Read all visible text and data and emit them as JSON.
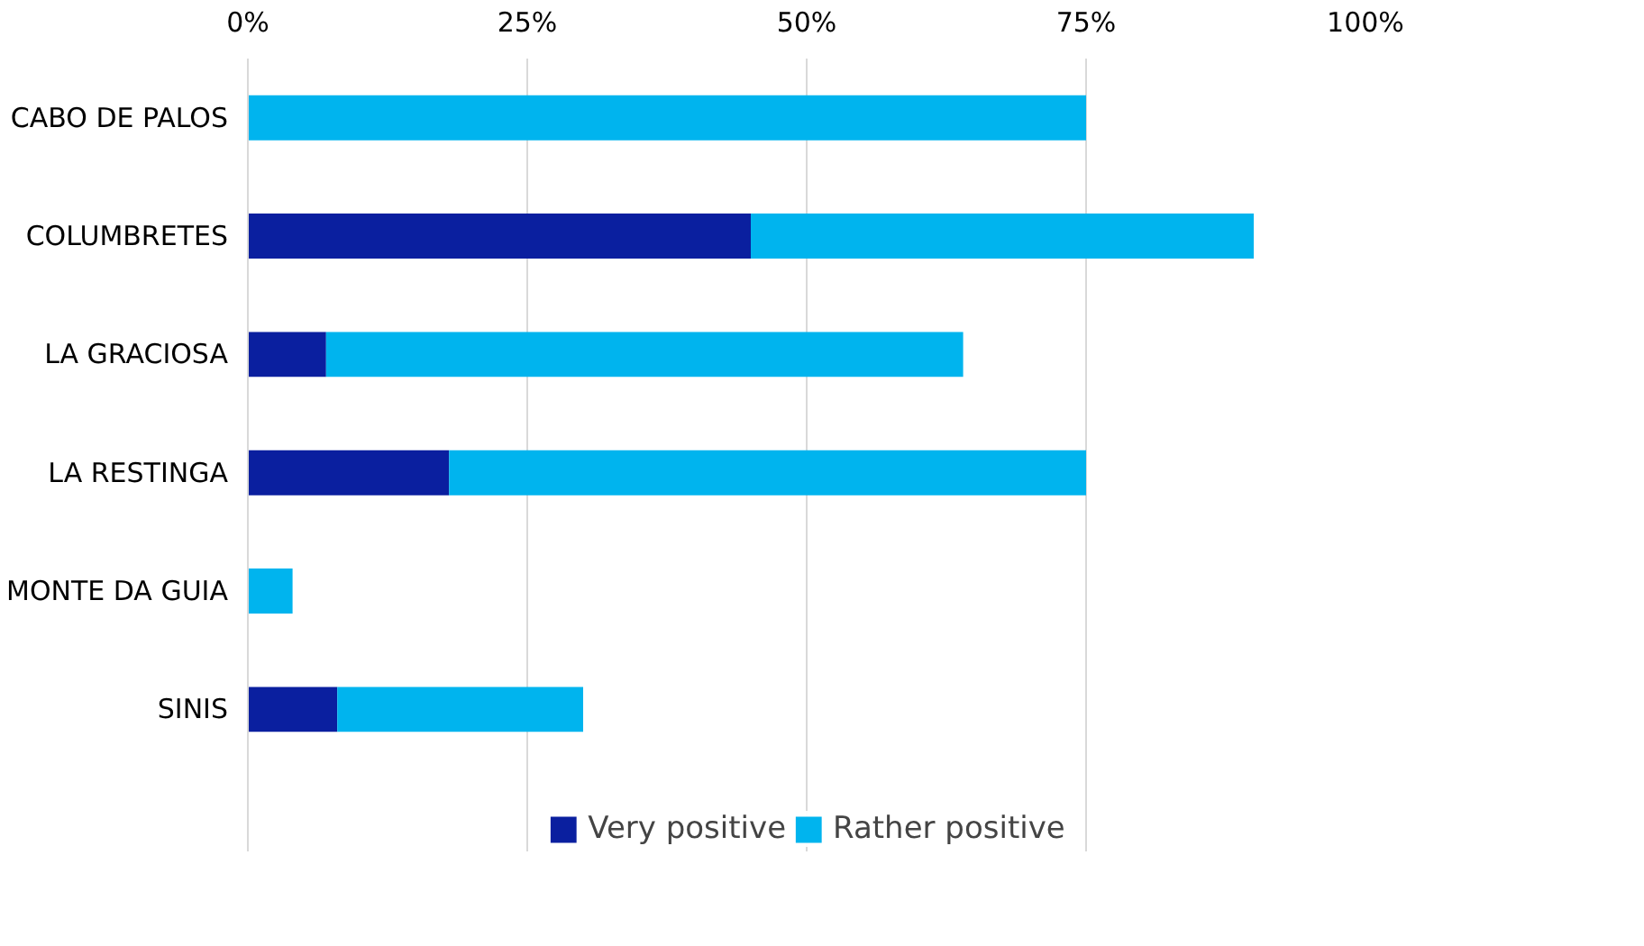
{
  "chart_data": {
    "type": "bar",
    "orientation": "horizontal",
    "stacked": true,
    "categories": [
      "CABO DE PALOS",
      "COLUMBRETES",
      "LA GRACIOSA",
      "LA RESTINGA",
      "MONTE DA GUIA",
      "SINIS"
    ],
    "series": [
      {
        "name": "Very positive",
        "color": "#0a1f9f",
        "values": [
          0,
          45,
          7,
          18,
          0,
          8
        ]
      },
      {
        "name": "Rather positive",
        "color": "#00b4ee",
        "values": [
          75,
          45,
          57,
          57,
          4,
          22
        ]
      }
    ],
    "xlim": [
      0,
      100
    ],
    "xticks": [
      {
        "value": 0,
        "label": "0%"
      },
      {
        "value": 25,
        "label": "25%"
      },
      {
        "value": 50,
        "label": "50%"
      },
      {
        "value": 75,
        "label": "75%"
      },
      {
        "value": 100,
        "label": "100%"
      }
    ],
    "grid": "x",
    "legend": "bottom"
  }
}
